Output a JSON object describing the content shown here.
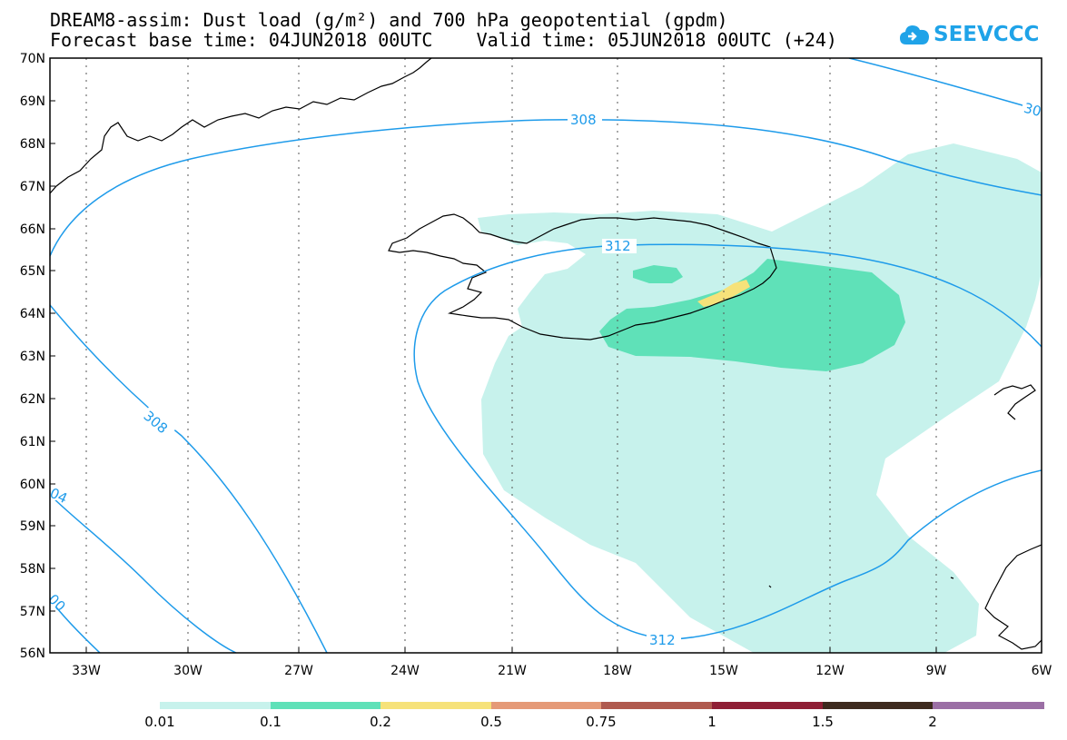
{
  "title": {
    "line1": "DREAM8-assim: Dust load (g/m²) and 700 hPa geopotential (gpdm)",
    "line2": "Forecast base time: 04JUN2018 00UTC    Valid time: 05JUN2018 00UTC (+24)"
  },
  "logo": {
    "text": "SEEVCCC",
    "icon": "cloud-icon",
    "color": "#1fa3e8"
  },
  "map": {
    "lat_labels": [
      "70N",
      "69N",
      "68N",
      "67N",
      "66N",
      "65N",
      "64N",
      "63N",
      "62N",
      "61N",
      "60N",
      "59N",
      "58N",
      "57N",
      "56N"
    ],
    "lon_labels": [
      "33W",
      "30W",
      "27W",
      "24W",
      "21W",
      "18W",
      "15W",
      "12W",
      "9W",
      "6W"
    ],
    "contour_labels": [
      "308",
      "312",
      "308",
      "312",
      "30",
      "04",
      "00"
    ],
    "contour_color": "#1e9bea"
  },
  "colorbar": {
    "labels": [
      "0.01",
      "0.1",
      "0.2",
      "0.5",
      "0.75",
      "1",
      "1.5",
      "2"
    ],
    "colors": [
      "#c7f2ec",
      "#5fe1b8",
      "#f6e27a",
      "#e59a78",
      "#b05a4f",
      "#8f1f35",
      "#3d2a1e",
      "#9b6fa5"
    ]
  }
}
